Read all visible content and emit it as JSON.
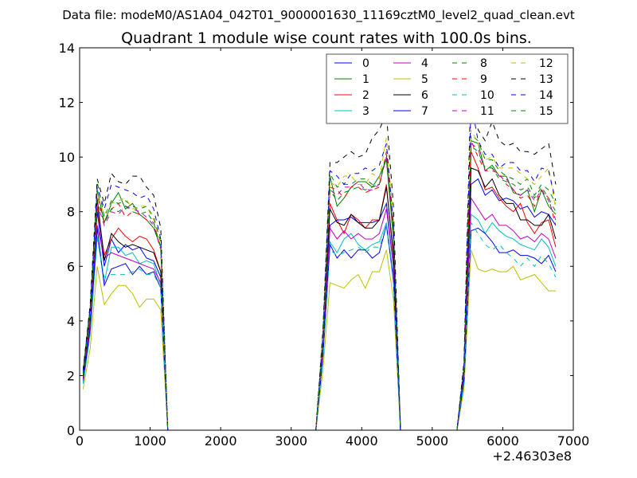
{
  "chart_data": {
    "type": "line",
    "suptitle": "Data file: modeM0/AS1A04_042T01_9000001630_11169cztM0_level2_quad_clean.evt",
    "title": "Quadrant 1 module wise count rates with 100.0s bins.",
    "xlabel": "",
    "ylabel": "",
    "x_offset_label": "+2.46303e8",
    "xlim": [
      0,
      7000
    ],
    "ylim": [
      0,
      14
    ],
    "xticks": [
      0,
      1000,
      2000,
      3000,
      4000,
      5000,
      6000,
      7000
    ],
    "yticks": [
      0,
      2,
      4,
      6,
      8,
      10,
      12,
      14
    ],
    "legend_position": "top-right",
    "legend_columns": 4,
    "x": [
      50,
      150,
      250,
      350,
      450,
      550,
      650,
      750,
      850,
      950,
      1050,
      1150,
      1250,
      1350,
      1450,
      1550,
      1650,
      1750,
      1850,
      1950,
      2050,
      2150,
      2250,
      2350,
      2450,
      2550,
      2650,
      2750,
      2850,
      2950,
      3050,
      3150,
      3250,
      3350,
      3450,
      3550,
      3650,
      3750,
      3850,
      3950,
      4050,
      4150,
      4250,
      4350,
      4450,
      4550,
      4650,
      4750,
      4850,
      4950,
      5050,
      5150,
      5250,
      5350,
      5450,
      5550,
      5650,
      5750,
      5850,
      5950,
      6050,
      6150,
      6250,
      6350,
      6450,
      6550,
      6650,
      6750
    ],
    "series": [
      {
        "name": "0",
        "color": "#0000ff",
        "dash": "solid",
        "values": [
          2.0,
          4.0,
          8.0,
          6.0,
          7.0,
          6.5,
          6.8,
          6.6,
          6.7,
          6.3,
          6.2,
          5.6,
          0,
          0,
          0,
          0,
          0,
          0,
          0,
          0,
          0,
          0,
          0,
          0,
          0,
          0,
          0,
          0,
          0,
          0,
          0,
          0,
          0,
          0,
          3.0,
          7.5,
          7.7,
          7.7,
          7.8,
          7.6,
          7.6,
          7.6,
          7.7,
          8.3,
          6.0,
          0,
          0,
          0,
          0,
          0,
          0,
          0,
          0,
          0,
          2.0,
          9.0,
          9.2,
          8.6,
          8.8,
          8.4,
          8.5,
          8.4,
          8.1,
          8.2,
          7.8,
          8.0,
          7.9,
          7.5
        ]
      },
      {
        "name": "1",
        "color": "#008000",
        "dash": "solid",
        "values": [
          2.2,
          4.5,
          8.8,
          7.6,
          8.3,
          8.7,
          8.1,
          8.3,
          7.9,
          7.7,
          7.4,
          6.7,
          0,
          0,
          0,
          0,
          0,
          0,
          0,
          0,
          0,
          0,
          0,
          0,
          0,
          0,
          0,
          0,
          0,
          0,
          0,
          0,
          0,
          0,
          3.4,
          9.3,
          8.2,
          8.5,
          8.9,
          9.1,
          9.1,
          8.9,
          9.3,
          9.9,
          7.0,
          0,
          0,
          0,
          0,
          0,
          0,
          0,
          0,
          0,
          2.3,
          10.6,
          10.5,
          9.5,
          9.7,
          9.3,
          9.3,
          8.7,
          8.6,
          8.8,
          8.0,
          8.8,
          8.2,
          7.9
        ]
      },
      {
        "name": "2",
        "color": "#ff0000",
        "dash": "solid",
        "values": [
          1.9,
          4.1,
          8.2,
          6.4,
          7.0,
          7.4,
          7.1,
          6.9,
          7.1,
          7.0,
          6.6,
          5.8,
          0,
          0,
          0,
          0,
          0,
          0,
          0,
          0,
          0,
          0,
          0,
          0,
          0,
          0,
          0,
          0,
          0,
          0,
          0,
          0,
          0,
          0,
          3.1,
          8.3,
          7.7,
          7.2,
          7.9,
          7.7,
          7.4,
          7.7,
          7.7,
          9.0,
          6.3,
          0,
          0,
          0,
          0,
          0,
          0,
          0,
          0,
          0,
          2.1,
          10.2,
          9.6,
          8.8,
          8.9,
          8.5,
          8.2,
          8.0,
          8.3,
          7.6,
          7.2,
          7.6,
          7.7,
          6.7
        ]
      },
      {
        "name": "3",
        "color": "#00bfbf",
        "dash": "solid",
        "values": [
          1.7,
          3.6,
          7.1,
          5.4,
          6.7,
          6.7,
          6.4,
          6.5,
          6.1,
          6.2,
          6.1,
          5.3,
          0,
          0,
          0,
          0,
          0,
          0,
          0,
          0,
          0,
          0,
          0,
          0,
          0,
          0,
          0,
          0,
          0,
          0,
          0,
          0,
          0,
          0,
          2.7,
          6.9,
          6.5,
          7.0,
          7.2,
          6.8,
          6.6,
          6.8,
          6.9,
          7.6,
          5.6,
          0,
          0,
          0,
          0,
          0,
          0,
          0,
          0,
          0,
          1.8,
          7.9,
          7.7,
          7.2,
          7.6,
          7.3,
          7.1,
          7.0,
          6.8,
          6.7,
          6.6,
          7.0,
          6.7,
          6.0
        ]
      },
      {
        "name": "4",
        "color": "#bf00bf",
        "dash": "solid",
        "values": [
          1.8,
          3.8,
          7.5,
          6.3,
          6.5,
          6.4,
          6.3,
          6.2,
          6.1,
          6.0,
          5.9,
          5.4,
          0,
          0,
          0,
          0,
          0,
          0,
          0,
          0,
          0,
          0,
          0,
          0,
          0,
          0,
          0,
          0,
          0,
          0,
          0,
          0,
          0,
          0,
          2.8,
          7.4,
          7.0,
          7.3,
          7.0,
          7.2,
          7.0,
          7.0,
          7.2,
          8.1,
          6.0,
          0,
          0,
          0,
          0,
          0,
          0,
          0,
          0,
          0,
          1.9,
          8.5,
          8.1,
          7.7,
          7.9,
          7.5,
          7.5,
          7.3,
          7.0,
          7.1,
          6.9,
          7.2,
          7.0,
          6.3
        ]
      },
      {
        "name": "5",
        "color": "#bfbf00",
        "dash": "solid",
        "values": [
          1.5,
          3.0,
          6.0,
          4.6,
          5.0,
          5.3,
          5.3,
          5.0,
          4.5,
          4.8,
          4.8,
          4.4,
          0,
          0,
          0,
          0,
          0,
          0,
          0,
          0,
          0,
          0,
          0,
          0,
          0,
          0,
          0,
          0,
          0,
          0,
          0,
          0,
          0,
          0,
          2.2,
          5.4,
          5.3,
          5.2,
          5.5,
          5.7,
          5.2,
          5.8,
          5.8,
          6.6,
          4.8,
          0,
          0,
          0,
          0,
          0,
          0,
          0,
          0,
          0,
          1.5,
          6.6,
          5.9,
          5.8,
          5.9,
          5.8,
          5.8,
          6.0,
          5.5,
          5.6,
          5.7,
          5.4,
          5.1,
          5.1
        ]
      },
      {
        "name": "6",
        "color": "#000000",
        "dash": "solid",
        "values": [
          2.0,
          4.2,
          8.5,
          6.2,
          7.2,
          6.9,
          6.7,
          6.8,
          6.7,
          6.6,
          6.5,
          5.8,
          0,
          0,
          0,
          0,
          0,
          0,
          0,
          0,
          0,
          0,
          0,
          0,
          0,
          0,
          0,
          0,
          0,
          0,
          0,
          0,
          0,
          0,
          3.2,
          8.1,
          7.6,
          7.5,
          7.9,
          7.6,
          7.4,
          7.4,
          7.7,
          8.9,
          6.5,
          0,
          0,
          0,
          0,
          0,
          0,
          0,
          0,
          0,
          2.1,
          9.6,
          9.5,
          8.9,
          9.2,
          8.6,
          8.3,
          8.3,
          7.7,
          7.7,
          7.5,
          7.5,
          7.9,
          7.0
        ]
      },
      {
        "name": "7",
        "color": "#0000ff",
        "dash": "solid",
        "values": [
          1.8,
          3.7,
          7.4,
          5.3,
          5.9,
          6.0,
          6.1,
          5.7,
          6.0,
          5.7,
          5.8,
          5.2,
          0,
          0,
          0,
          0,
          0,
          0,
          0,
          0,
          0,
          0,
          0,
          0,
          0,
          0,
          0,
          0,
          0,
          0,
          0,
          0,
          0,
          0,
          2.7,
          6.8,
          6.3,
          6.6,
          6.3,
          6.6,
          6.6,
          6.3,
          6.5,
          7.5,
          5.5,
          0,
          0,
          0,
          0,
          0,
          0,
          0,
          0,
          0,
          1.8,
          7.3,
          7.4,
          7.2,
          6.9,
          6.5,
          6.5,
          6.6,
          6.4,
          6.4,
          6.3,
          6.1,
          6.4,
          5.8
        ]
      },
      {
        "name": "8",
        "color": "#008000",
        "dash": "dashed",
        "values": [
          2.2,
          4.6,
          9.1,
          7.8,
          8.4,
          8.3,
          8.4,
          8.2,
          8.1,
          8.2,
          7.8,
          6.9,
          0,
          0,
          0,
          0,
          0,
          0,
          0,
          0,
          0,
          0,
          0,
          0,
          0,
          0,
          0,
          0,
          0,
          0,
          0,
          0,
          0,
          0,
          3.5,
          9.4,
          8.9,
          9.0,
          9.0,
          9.2,
          9.2,
          9.0,
          9.0,
          10.0,
          7.4,
          0,
          0,
          0,
          0,
          0,
          0,
          0,
          0,
          0,
          2.3,
          10.8,
          10.6,
          9.9,
          9.9,
          9.5,
          9.3,
          9.2,
          9.0,
          9.2,
          8.6,
          9.0,
          8.8,
          8.3
        ]
      },
      {
        "name": "9",
        "color": "#ff0000",
        "dash": "dashed",
        "values": [
          2.1,
          4.3,
          8.6,
          7.6,
          8.1,
          8.3,
          7.8,
          8.0,
          7.9,
          7.7,
          7.6,
          6.6,
          0,
          0,
          0,
          0,
          0,
          0,
          0,
          0,
          0,
          0,
          0,
          0,
          0,
          0,
          0,
          0,
          0,
          0,
          0,
          0,
          0,
          0,
          3.3,
          8.9,
          8.8,
          8.5,
          8.9,
          8.9,
          8.7,
          8.8,
          8.9,
          10.2,
          7.3,
          0,
          0,
          0,
          0,
          0,
          0,
          0,
          0,
          0,
          2.2,
          10.6,
          10.0,
          9.5,
          9.5,
          9.4,
          9.0,
          8.8,
          8.5,
          8.6,
          8.2,
          8.8,
          8.5,
          7.5
        ]
      },
      {
        "name": "10",
        "color": "#00bfbf",
        "dash": "dashed",
        "values": [
          1.7,
          3.5,
          7.0,
          5.6,
          5.7,
          5.7,
          5.7,
          5.8,
          5.9,
          5.7,
          5.7,
          5.2,
          0,
          0,
          0,
          0,
          0,
          0,
          0,
          0,
          0,
          0,
          0,
          0,
          0,
          0,
          0,
          0,
          0,
          0,
          0,
          0,
          0,
          0,
          2.6,
          6.6,
          6.4,
          6.5,
          6.6,
          6.7,
          6.5,
          6.7,
          6.7,
          7.5,
          5.4,
          0,
          0,
          0,
          0,
          0,
          0,
          0,
          0,
          0,
          1.7,
          7.6,
          7.2,
          6.8,
          6.6,
          6.8,
          6.5,
          6.3,
          6.0,
          6.3,
          6.0,
          6.4,
          6.1,
          5.6
        ]
      },
      {
        "name": "11",
        "color": "#bf00bf",
        "dash": "dashed",
        "values": [
          2.0,
          4.2,
          8.3,
          7.5,
          8.0,
          7.9,
          8.2,
          8.1,
          8.0,
          7.8,
          7.5,
          6.6,
          0,
          0,
          0,
          0,
          0,
          0,
          0,
          0,
          0,
          0,
          0,
          0,
          0,
          0,
          0,
          0,
          0,
          0,
          0,
          0,
          0,
          0,
          3.3,
          8.8,
          8.6,
          8.9,
          8.9,
          9.1,
          8.8,
          8.8,
          9.0,
          10.0,
          7.3,
          0,
          0,
          0,
          0,
          0,
          0,
          0,
          0,
          0,
          2.2,
          10.5,
          10.3,
          9.5,
          9.6,
          9.3,
          9.2,
          8.8,
          8.6,
          8.8,
          8.4,
          8.8,
          8.4,
          7.7
        ]
      },
      {
        "name": "12",
        "color": "#bfbf00",
        "dash": "dashed",
        "values": [
          2.1,
          4.3,
          8.6,
          7.9,
          8.3,
          8.4,
          8.5,
          8.1,
          8.2,
          8.2,
          7.7,
          6.8,
          0,
          0,
          0,
          0,
          0,
          0,
          0,
          0,
          0,
          0,
          0,
          0,
          0,
          0,
          0,
          0,
          0,
          0,
          0,
          0,
          0,
          0,
          3.4,
          9.1,
          8.9,
          9.3,
          9.3,
          9.0,
          9.0,
          9.4,
          9.2,
          10.7,
          7.7,
          0,
          0,
          0,
          0,
          0,
          0,
          0,
          0,
          0,
          2.3,
          11.0,
          10.5,
          9.9,
          10.0,
          9.6,
          9.6,
          9.6,
          9.4,
          9.2,
          9.0,
          9.3,
          9.6,
          8.1
        ]
      },
      {
        "name": "13",
        "color": "#000000",
        "dash": "dashed",
        "values": [
          2.2,
          4.6,
          9.2,
          8.3,
          9.4,
          9.1,
          9.0,
          9.3,
          9.3,
          8.9,
          8.6,
          7.4,
          0,
          0,
          0,
          0,
          0,
          0,
          0,
          0,
          0,
          0,
          0,
          0,
          0,
          0,
          0,
          0,
          0,
          0,
          0,
          0,
          0,
          0,
          3.7,
          9.8,
          9.8,
          10.0,
          10.2,
          10.0,
          10.1,
          10.7,
          11.0,
          11.6,
          8.2,
          0,
          0,
          0,
          0,
          0,
          0,
          0,
          0,
          0,
          2.5,
          12.9,
          11.0,
          10.6,
          11.3,
          10.6,
          10.4,
          10.5,
          10.2,
          10.2,
          10.1,
          10.3,
          10.5,
          9.0
        ]
      },
      {
        "name": "14",
        "color": "#0000ff",
        "dash": "dashed",
        "values": [
          2.1,
          4.5,
          8.9,
          8.1,
          9.0,
          8.9,
          8.8,
          8.7,
          8.5,
          8.6,
          8.1,
          7.0,
          0,
          0,
          0,
          0,
          0,
          0,
          0,
          0,
          0,
          0,
          0,
          0,
          0,
          0,
          0,
          0,
          0,
          0,
          0,
          0,
          0,
          0,
          3.5,
          9.5,
          9.3,
          9.0,
          9.4,
          9.4,
          9.6,
          9.5,
          9.7,
          10.5,
          7.5,
          0,
          0,
          0,
          0,
          0,
          0,
          0,
          0,
          0,
          2.4,
          12.0,
          10.6,
          10.1,
          10.1,
          9.6,
          9.8,
          9.8,
          9.5,
          9.5,
          9.1,
          9.6,
          9.5,
          8.4
        ]
      },
      {
        "name": "15",
        "color": "#008000",
        "dash": "dashed",
        "values": [
          2.0,
          4.3,
          8.4,
          7.6,
          8.1,
          8.0,
          8.2,
          8.0,
          7.9,
          8.0,
          7.6,
          6.7,
          0,
          0,
          0,
          0,
          0,
          0,
          0,
          0,
          0,
          0,
          0,
          0,
          0,
          0,
          0,
          0,
          0,
          0,
          0,
          0,
          0,
          0,
          3.3,
          8.8,
          8.4,
          8.7,
          8.8,
          8.9,
          8.8,
          8.9,
          9.0,
          10.1,
          7.2,
          0,
          0,
          0,
          0,
          0,
          0,
          0,
          0,
          0,
          2.2,
          10.4,
          10.2,
          9.6,
          9.6,
          9.2,
          9.1,
          9.0,
          8.8,
          8.9,
          8.5,
          8.9,
          8.5,
          8.0
        ]
      }
    ]
  }
}
